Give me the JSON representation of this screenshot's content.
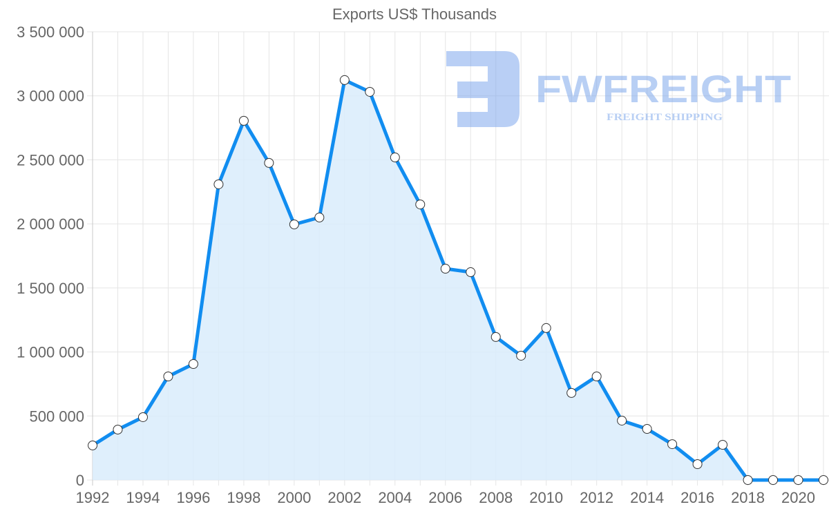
{
  "chart_data": {
    "type": "line",
    "title": "Exports US$ Thousands",
    "xlabel": "",
    "ylabel": "",
    "ylim": [
      0,
      3500000
    ],
    "xlim": [
      1992,
      2021
    ],
    "grid": true,
    "legend": null,
    "fill": true,
    "colors": {
      "line": "#118DF0",
      "fill": "#D9ECFC",
      "point_fill": "#FFFFFF",
      "point_border": "#333333",
      "grid": "#E5E5E5",
      "text": "#666666"
    },
    "y_ticks": [
      "0",
      "500 000",
      "1 000 000",
      "1 500 000",
      "2 000 000",
      "2 500 000",
      "3 000 000",
      "3 500 000"
    ],
    "x_ticks": [
      "1992",
      "1994",
      "1996",
      "1998",
      "2000",
      "2002",
      "2004",
      "2006",
      "2008",
      "2010",
      "2012",
      "2014",
      "2016",
      "2018",
      "2020"
    ],
    "x": [
      1992,
      1993,
      1994,
      1995,
      1996,
      1997,
      1998,
      1999,
      2000,
      2001,
      2002,
      2003,
      2004,
      2005,
      2006,
      2007,
      2008,
      2009,
      2010,
      2011,
      2012,
      2013,
      2014,
      2015,
      2016,
      2017,
      2018,
      2019,
      2020,
      2021
    ],
    "series": [
      {
        "name": "Exports US$ Thousands",
        "values": [
          270000,
          394000,
          491000,
          809000,
          906000,
          2309000,
          2805000,
          2476000,
          1996000,
          2050000,
          3123000,
          3031000,
          2519000,
          2152000,
          1650000,
          1623000,
          1117000,
          971000,
          1187000,
          680000,
          809000,
          464000,
          399000,
          280000,
          124000,
          275000,
          0,
          0,
          0,
          0
        ]
      }
    ]
  },
  "watermark": {
    "brand": "FWFREIGHT",
    "tagline": "FREIGHT SHIPPING"
  }
}
